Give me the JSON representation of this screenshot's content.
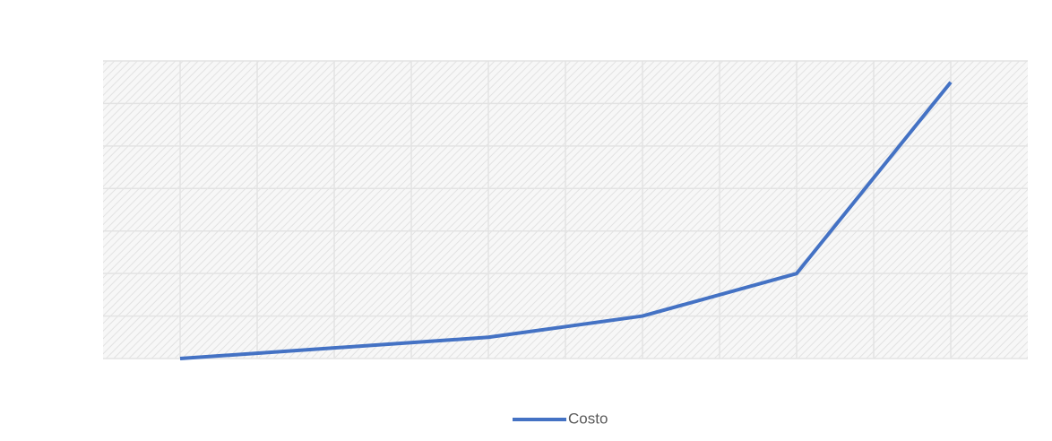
{
  "chart_data": {
    "type": "line",
    "categories": [
      null,
      null,
      null,
      null,
      null,
      null
    ],
    "series": [
      {
        "name": "Costo",
        "color": "#4472c4",
        "values": [
          0,
          0.25,
          0.5,
          1,
          2,
          6.5
        ]
      }
    ],
    "ylim": [
      0,
      7
    ],
    "yticks": [
      0,
      1,
      2,
      3,
      4,
      5,
      6,
      7
    ],
    "grid": true,
    "legend": "bottom"
  }
}
